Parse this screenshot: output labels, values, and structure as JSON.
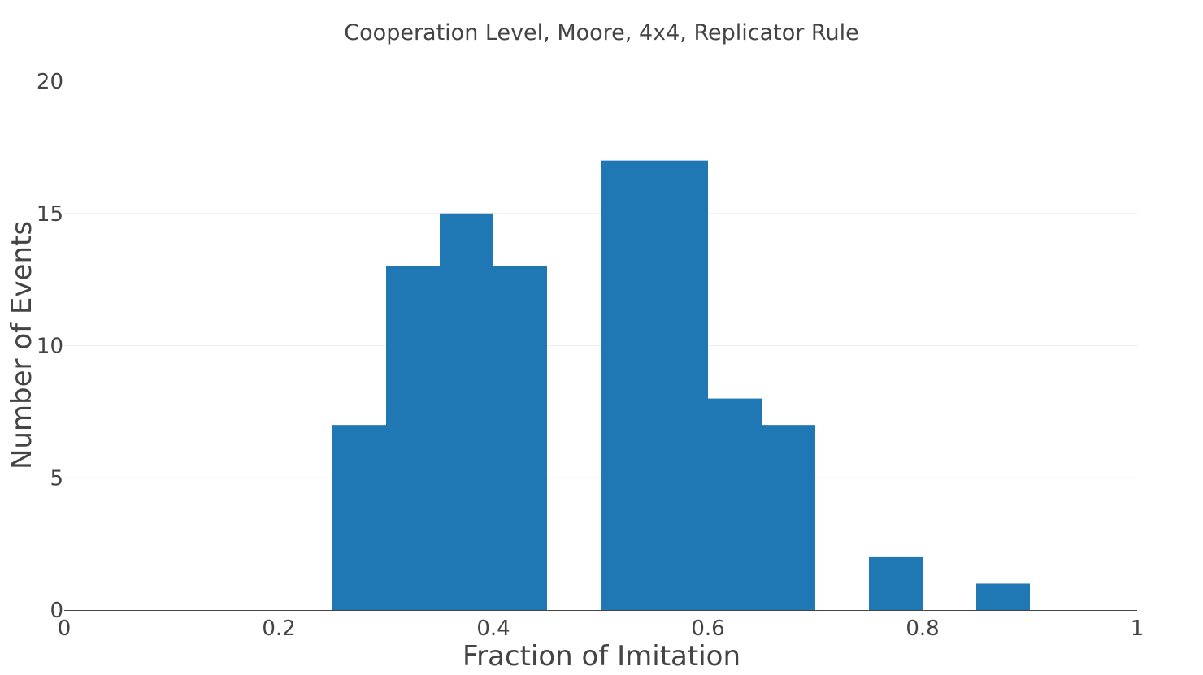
{
  "chart_data": {
    "type": "bar",
    "title": "Cooperation Level, Moore, 4x4, Replicator Rule",
    "xlabel": "Fraction of Imitation",
    "ylabel": "Number of Events",
    "xlim": [
      0,
      1
    ],
    "ylim": [
      0,
      20
    ],
    "x_ticks": [
      {
        "value": 0,
        "label": "0"
      },
      {
        "value": 0.2,
        "label": "0.2"
      },
      {
        "value": 0.4,
        "label": "0.4"
      },
      {
        "value": 0.6,
        "label": "0.6"
      },
      {
        "value": 0.8,
        "label": "0.8"
      },
      {
        "value": 1,
        "label": "1"
      }
    ],
    "y_ticks": [
      {
        "value": 0,
        "label": "0"
      },
      {
        "value": 5,
        "label": "5"
      },
      {
        "value": 10,
        "label": "10"
      },
      {
        "value": 15,
        "label": "15"
      },
      {
        "value": 20,
        "label": "20"
      }
    ],
    "bin_width": 0.05,
    "bins": [
      {
        "start": 0.25,
        "count": 7
      },
      {
        "start": 0.3,
        "count": 13
      },
      {
        "start": 0.35,
        "count": 15
      },
      {
        "start": 0.4,
        "count": 13
      },
      {
        "start": 0.5,
        "count": 17
      },
      {
        "start": 0.55,
        "count": 17
      },
      {
        "start": 0.6,
        "count": 8
      },
      {
        "start": 0.65,
        "count": 7
      },
      {
        "start": 0.75,
        "count": 2
      },
      {
        "start": 0.85,
        "count": 1
      }
    ],
    "bar_color": "#1f77b4",
    "grid": true,
    "legend": false
  }
}
